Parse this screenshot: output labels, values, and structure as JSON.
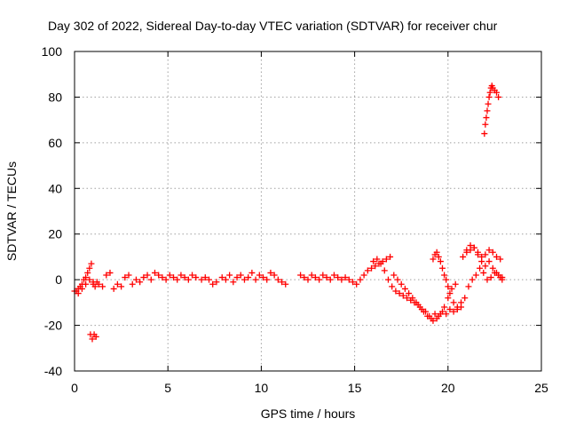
{
  "chart_data": {
    "type": "scatter",
    "title": "Day 302 of 2022, Sidereal Day-to-day VTEC variation (SDTVAR) for receiver chur",
    "xlabel": "GPS time / hours",
    "ylabel": "SDTVAR / TECUs",
    "xlim": [
      0,
      25
    ],
    "ylim": [
      -40,
      100
    ],
    "xticks": [
      0,
      5,
      10,
      15,
      20,
      25
    ],
    "yticks": [
      -40,
      -20,
      0,
      20,
      40,
      60,
      80,
      100
    ],
    "xtick_labels": [
      "0",
      "5",
      "10",
      "15",
      "20",
      "25"
    ],
    "ytick_labels": [
      "-40",
      "-20",
      "0",
      "20",
      "40",
      "60",
      "80",
      "100"
    ],
    "grid": true,
    "marker": "plus",
    "color": "#ff0000",
    "series": [
      {
        "name": "SDTVAR",
        "x": [
          0.0,
          0.1,
          0.2,
          0.3,
          0.4,
          0.5,
          0.6,
          0.7,
          0.8,
          0.9,
          1.0,
          1.1,
          1.2,
          1.3,
          1.5,
          1.7,
          1.9,
          2.1,
          2.3,
          2.5,
          2.7,
          2.9,
          3.1,
          3.3,
          3.5,
          3.7,
          3.9,
          4.1,
          4.3,
          4.5,
          4.7,
          4.9,
          5.1,
          5.3,
          5.5,
          5.7,
          5.9,
          6.1,
          6.3,
          6.5,
          6.8,
          7.0,
          7.2,
          7.4,
          7.6,
          7.9,
          8.1,
          8.3,
          8.5,
          8.7,
          8.9,
          9.1,
          9.3,
          9.5,
          9.7,
          9.9,
          10.1,
          10.3,
          10.5,
          10.7,
          10.9,
          11.1,
          11.3,
          12.1,
          12.3,
          12.5,
          12.7,
          12.9,
          13.1,
          13.3,
          13.5,
          13.7,
          13.9,
          14.1,
          14.3,
          14.5,
          14.7,
          14.9,
          15.1,
          15.3,
          15.5,
          15.7,
          15.9,
          16.1,
          16.3,
          16.5,
          16.7,
          16.9,
          17.1,
          17.3,
          17.5,
          17.7,
          17.9,
          18.1,
          18.3,
          18.5,
          18.7,
          18.9,
          19.1,
          19.3,
          19.5,
          19.7,
          19.9,
          20.1,
          20.3,
          20.5,
          20.7,
          0.85,
          0.95,
          1.05,
          1.15,
          0.2,
          0.4,
          0.6,
          0.8,
          1.0,
          16.0,
          16.2,
          16.4,
          16.6,
          16.8,
          17.0,
          17.2,
          17.4,
          17.6,
          17.8,
          18.0,
          18.2,
          18.4,
          18.6,
          18.8,
          19.0,
          19.2,
          19.4,
          19.6,
          19.8,
          20.0,
          20.2,
          20.4,
          19.2,
          19.3,
          19.4,
          19.5,
          19.6,
          19.7,
          19.8,
          19.9,
          20.0,
          20.1,
          20.3,
          20.5,
          20.7,
          20.9,
          21.1,
          21.3,
          21.5,
          21.7,
          21.9,
          22.1,
          22.3,
          22.5,
          22.7,
          22.9,
          21.0,
          21.2,
          21.4,
          21.6,
          21.8,
          22.0,
          22.2,
          22.4,
          22.6,
          22.8,
          21.95,
          22.0,
          22.05,
          22.1,
          22.15,
          22.2,
          22.25,
          22.3,
          22.35,
          22.4,
          22.5,
          22.6,
          22.7,
          20.8,
          21.0,
          21.2,
          21.4,
          21.6,
          21.8,
          22.0,
          22.2,
          22.4,
          22.6,
          22.8,
          22.9
        ],
        "y": [
          -5,
          -5,
          -4,
          -3,
          -2,
          0,
          1,
          3,
          5,
          7,
          -2,
          -3,
          -1,
          -2,
          -3,
          2,
          3,
          -4,
          -2,
          -3,
          1,
          2,
          -2,
          0,
          -1,
          1,
          2,
          0,
          3,
          2,
          1,
          0,
          2,
          1,
          0,
          2,
          1,
          0,
          2,
          1,
          0,
          1,
          0,
          -2,
          -1,
          1,
          0,
          2,
          -1,
          1,
          2,
          0,
          1,
          3,
          0,
          2,
          1,
          0,
          3,
          2,
          0,
          -1,
          -2,
          2,
          1,
          0,
          2,
          1,
          0,
          2,
          1,
          0,
          2,
          1,
          0,
          1,
          0,
          -1,
          -2,
          0,
          2,
          4,
          5,
          6,
          7,
          8,
          9,
          10,
          2,
          0,
          -2,
          -4,
          -6,
          -8,
          -10,
          -12,
          -14,
          -16,
          -17,
          -15,
          -16,
          -14,
          -15,
          -13,
          -14,
          -12,
          -10,
          -24,
          -26,
          -24,
          -25,
          -6,
          -4,
          -2,
          0,
          -1,
          8,
          9,
          7,
          4,
          0,
          -3,
          -5,
          -6,
          -7,
          -8,
          -9,
          -10,
          -11,
          -13,
          -14,
          -16,
          -18,
          -17,
          -15,
          -12,
          -8,
          -4,
          -2,
          9,
          11,
          12,
          10,
          8,
          5,
          2,
          0,
          -3,
          -6,
          -10,
          -13,
          -12,
          -8,
          -3,
          0,
          2,
          5,
          3,
          0,
          1,
          3,
          2,
          0,
          12,
          13,
          14,
          12,
          10,
          11,
          13,
          12,
          10,
          9,
          64,
          68,
          71,
          74,
          77,
          80,
          82,
          84,
          85,
          84,
          83,
          82,
          80,
          10,
          13,
          15,
          14,
          11,
          8,
          6,
          8,
          5,
          3,
          1,
          1
        ]
      }
    ]
  }
}
